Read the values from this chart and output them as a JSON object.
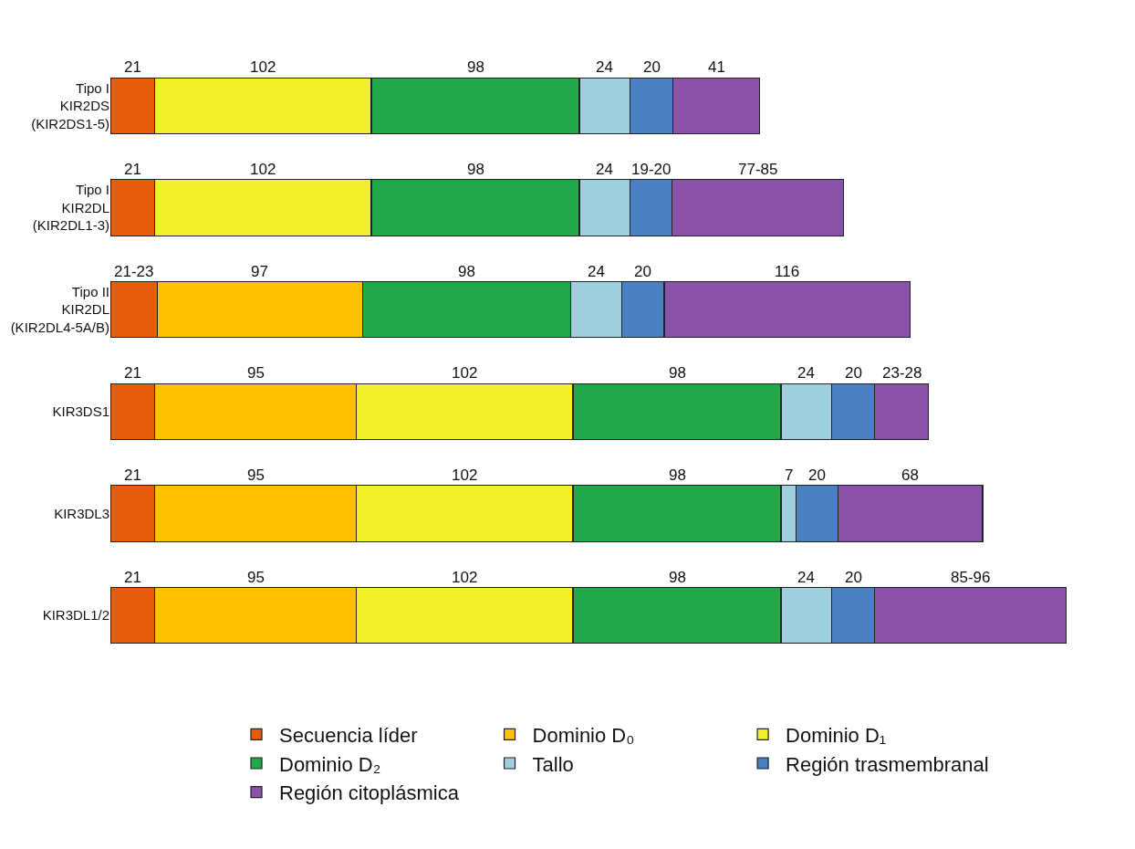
{
  "chart_data": {
    "type": "bar",
    "orientation": "horizontal",
    "stacked": true,
    "legend": "bottom",
    "grid": false,
    "categories": [
      "Tipo I\nKIR2DS\n(KIR2DS1-5)",
      "Tipo I\nKIR2DL\n(KIR2DL1-3)",
      "Tipo II\nKIR2DL\n(KIR2DL4-5A/B)",
      "KIR3DS1",
      "KIR3DL3",
      "KIR3DL1/2"
    ],
    "series": [
      {
        "name": "Secuencia líder",
        "color": "#e65c0a",
        "values": [
          21,
          21,
          22,
          21,
          21,
          21
        ],
        "value_labels": [
          "21",
          "21",
          "21-23",
          "21",
          "21",
          "21"
        ]
      },
      {
        "name": "Dominio D₀",
        "color": "#ffc000",
        "values": [
          null,
          null,
          97,
          95,
          95,
          95
        ],
        "value_labels": [
          null,
          null,
          "97",
          "95",
          "95",
          "95"
        ]
      },
      {
        "name": "Dominio D₁",
        "color": "#f2f02a",
        "values": [
          102,
          102,
          null,
          102,
          102,
          102
        ],
        "value_labels": [
          "102",
          "102",
          null,
          "102",
          "102",
          "102"
        ]
      },
      {
        "name": "Dominio D₂",
        "color": "#22a84a",
        "values": [
          98,
          98,
          98,
          98,
          98,
          98
        ],
        "value_labels": [
          "98",
          "98",
          "98",
          "98",
          "98",
          "98"
        ]
      },
      {
        "name": "Tallo",
        "color": "#9fcfdc",
        "values": [
          24,
          24,
          24,
          24,
          7,
          24
        ],
        "value_labels": [
          "24",
          "24",
          "24",
          "24",
          "7",
          "24"
        ]
      },
      {
        "name": "Región trasmembranal",
        "color": "#4a7fc1",
        "values": [
          20,
          19.5,
          20,
          20,
          20,
          20
        ],
        "value_labels": [
          "20",
          "19-20",
          "20",
          "20",
          "20",
          "20"
        ]
      },
      {
        "name": "Región citoplásmica",
        "color": "#8a52a8",
        "values": [
          41,
          81,
          116,
          25.5,
          68,
          90.5
        ],
        "value_labels": [
          "41",
          "77-85",
          "116",
          "23-28",
          "68",
          "85-96"
        ]
      }
    ]
  }
}
